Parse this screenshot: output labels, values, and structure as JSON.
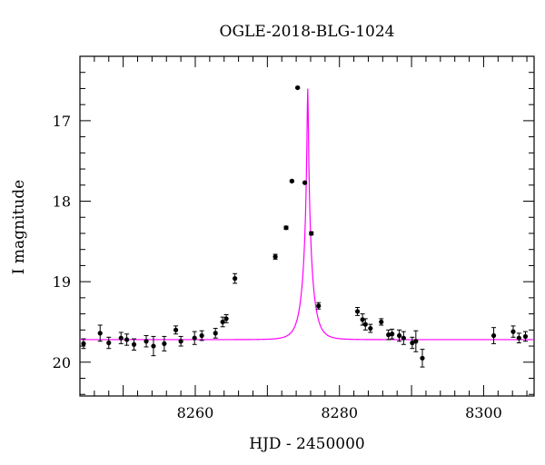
{
  "chart_data": {
    "type": "scatter",
    "title": "OGLE-2018-BLG-1024",
    "xlabel": "HJD - 2450000",
    "ylabel": "I magnitude",
    "xlim": [
      8244,
      8307
    ],
    "ylim": [
      20.42,
      16.2
    ],
    "y_inverted": true,
    "xticks": [
      8260,
      8280,
      8300
    ],
    "yticks": [
      17,
      18,
      19,
      20
    ],
    "grid": false,
    "colors": {
      "points": "#000000",
      "model": "#ff00ff",
      "axes": "#000000"
    },
    "series": [
      {
        "kind": "points_with_errorbars",
        "x": [
          8244.5,
          8246.8,
          8248.0,
          8249.7,
          8250.5,
          8251.5,
          8253.2,
          8254.2,
          8255.7,
          8257.3,
          8258.0,
          8259.9,
          8260.9,
          8262.8,
          8263.8,
          8264.3,
          8265.5,
          8271.1,
          8272.6,
          8273.4,
          8274.2,
          8275.2,
          8276.1,
          8277.1,
          8282.5,
          8283.2,
          8283.6,
          8284.3,
          8285.8,
          8286.8,
          8287.3,
          8288.3,
          8288.9,
          8290.1,
          8290.6,
          8291.5,
          8301.4,
          8304.1,
          8304.9,
          8305.8
        ],
        "y": [
          19.77,
          19.64,
          19.76,
          19.7,
          19.72,
          19.78,
          19.74,
          19.8,
          19.77,
          19.6,
          19.74,
          19.7,
          19.67,
          19.64,
          19.5,
          19.46,
          18.96,
          18.69,
          18.33,
          17.75,
          16.59,
          17.77,
          18.4,
          19.3,
          19.37,
          19.47,
          19.53,
          19.58,
          19.5,
          19.66,
          19.65,
          19.67,
          19.7,
          19.76,
          19.74,
          19.95,
          19.67,
          19.62,
          19.7,
          19.68
        ],
        "yerr": [
          0.06,
          0.1,
          0.07,
          0.07,
          0.07,
          0.07,
          0.07,
          0.12,
          0.09,
          0.05,
          0.06,
          0.08,
          0.06,
          0.06,
          0.06,
          0.05,
          0.06,
          0.03,
          0.02,
          0.01,
          0.01,
          0.01,
          0.02,
          0.04,
          0.05,
          0.07,
          0.07,
          0.05,
          0.04,
          0.06,
          0.06,
          0.07,
          0.08,
          0.07,
          0.13,
          0.11,
          0.1,
          0.07,
          0.06,
          0.06
        ]
      },
      {
        "kind": "model_curve",
        "t0": 8275.6,
        "t_scale": 1.3,
        "base_mag": 19.72,
        "peak_mag": 16.6
      }
    ]
  }
}
